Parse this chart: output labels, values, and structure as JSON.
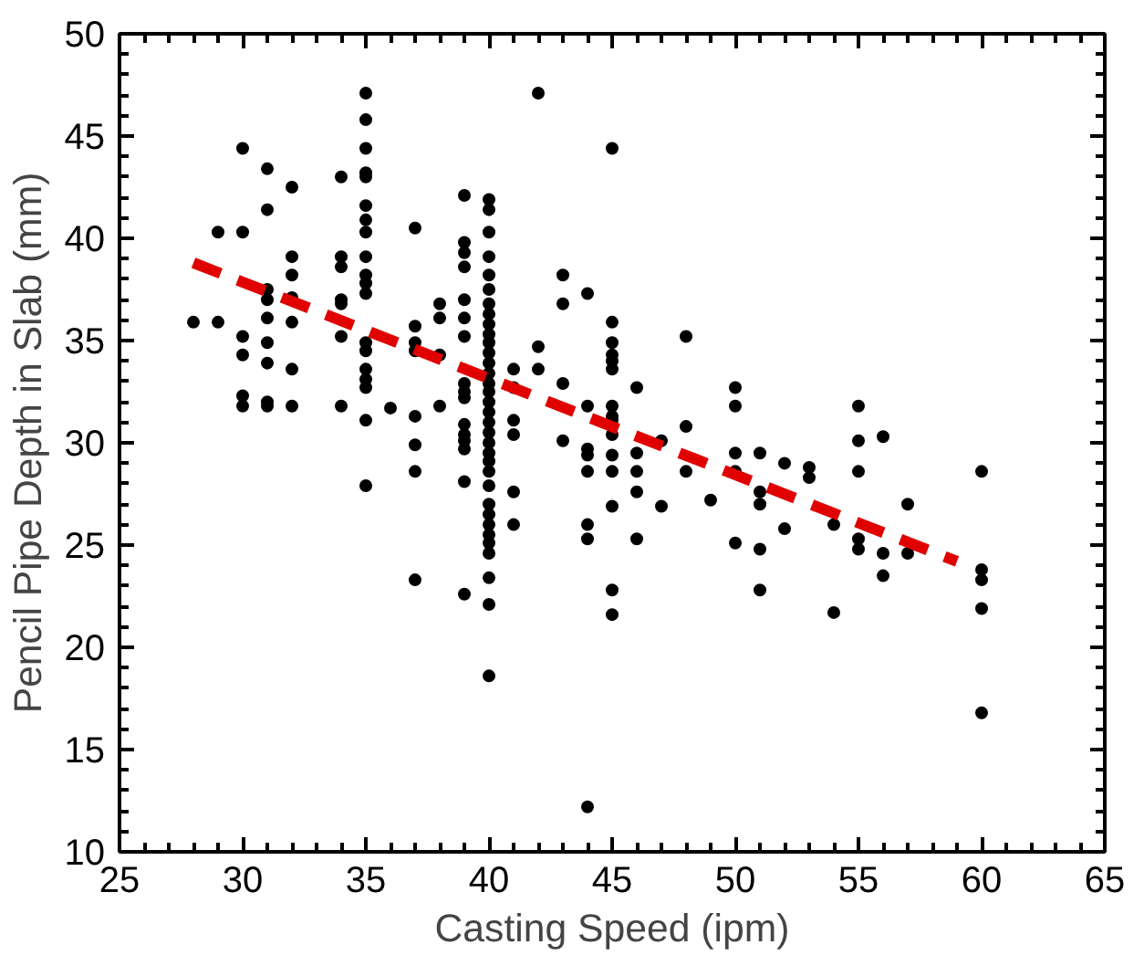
{
  "chart_data": {
    "type": "scatter",
    "xlabel": "Casting Speed (ipm)",
    "ylabel": "Pencil Pipe Depth in Slab (mm)",
    "xlim": [
      25,
      65
    ],
    "ylim": [
      10,
      50
    ],
    "xticks": [
      25,
      30,
      35,
      40,
      45,
      50,
      55,
      60,
      65
    ],
    "yticks": [
      10,
      15,
      20,
      25,
      30,
      35,
      40,
      45,
      50
    ],
    "grid": false,
    "series": [
      {
        "marker": "circle",
        "color": "#000000",
        "x": [
          28,
          29,
          29,
          30,
          30,
          30,
          30,
          30,
          30,
          31,
          31,
          31,
          31,
          31,
          31,
          31,
          31,
          31,
          32,
          32,
          32,
          32,
          32,
          32,
          32,
          34,
          34,
          34,
          34,
          34,
          34,
          34,
          35,
          35,
          35,
          35,
          35,
          35,
          35,
          35,
          35,
          35,
          35,
          35,
          35,
          35,
          35,
          35,
          35,
          35,
          35,
          36,
          37,
          37,
          37,
          37,
          37,
          37,
          37,
          37,
          38,
          38,
          38,
          38,
          39,
          39,
          39,
          39,
          39,
          39,
          39,
          39,
          39,
          39,
          39,
          39,
          39,
          39,
          39,
          39,
          40,
          40,
          40,
          40,
          40,
          40,
          40,
          40,
          40,
          40,
          40,
          40,
          40,
          40,
          40,
          40,
          40,
          40,
          40,
          40,
          40,
          40,
          40,
          40,
          40,
          40,
          40,
          40,
          40,
          40,
          40,
          40,
          40,
          40,
          41,
          41,
          41,
          41,
          41,
          41,
          42,
          42,
          42,
          43,
          43,
          43,
          43,
          44,
          44,
          44,
          44,
          44,
          44,
          44,
          44,
          45,
          45,
          45,
          45,
          45,
          45,
          45,
          45,
          45,
          45,
          45,
          45,
          45,
          45,
          45,
          46,
          46,
          46,
          46,
          46,
          47,
          47,
          48,
          48,
          48,
          49,
          50,
          50,
          50,
          50,
          50,
          51,
          51,
          51,
          51,
          51,
          52,
          52,
          53,
          53,
          54,
          54,
          55,
          55,
          55,
          55,
          55,
          56,
          56,
          56,
          57,
          57,
          60,
          60,
          60,
          60,
          60
        ],
        "values": [
          35.9,
          40.3,
          35.9,
          44.4,
          40.3,
          35.2,
          34.3,
          32.3,
          31.8,
          43.4,
          41.4,
          37.5,
          37.0,
          36.1,
          34.9,
          33.9,
          32.0,
          31.8,
          42.5,
          39.1,
          38.2,
          37.1,
          35.9,
          33.6,
          31.8,
          43.0,
          39.1,
          38.6,
          37.0,
          36.8,
          35.2,
          31.8,
          47.1,
          45.8,
          44.4,
          43.2,
          43.0,
          41.6,
          40.9,
          40.3,
          39.1,
          38.2,
          37.8,
          37.3,
          34.9,
          34.5,
          33.6,
          33.1,
          32.7,
          31.1,
          27.9,
          31.7,
          40.5,
          35.7,
          34.9,
          34.5,
          31.3,
          29.9,
          28.6,
          23.3,
          36.8,
          36.1,
          34.3,
          31.8,
          42.1,
          39.8,
          39.3,
          38.6,
          37.0,
          36.1,
          35.2,
          32.9,
          32.5,
          32.2,
          30.9,
          30.4,
          30.1,
          29.7,
          28.1,
          22.6,
          41.9,
          41.4,
          40.3,
          39.1,
          38.2,
          37.5,
          36.8,
          36.3,
          35.8,
          35.3,
          34.9,
          34.4,
          33.9,
          33.4,
          32.9,
          32.5,
          32.0,
          31.5,
          31.0,
          30.5,
          30.0,
          29.5,
          29.1,
          28.6,
          27.9,
          27.0,
          26.5,
          26.0,
          25.5,
          25.1,
          24.6,
          23.4,
          22.1,
          18.6,
          33.6,
          32.7,
          31.1,
          30.4,
          27.6,
          26.0,
          47.1,
          34.7,
          33.6,
          38.2,
          36.8,
          32.9,
          30.1,
          37.3,
          31.8,
          29.7,
          29.4,
          28.6,
          26.0,
          25.3,
          12.2,
          44.4,
          35.9,
          34.9,
          34.3,
          34.0,
          33.6,
          31.8,
          31.3,
          31.1,
          30.4,
          29.4,
          28.6,
          26.9,
          22.8,
          21.6,
          32.7,
          29.5,
          28.6,
          27.6,
          25.3,
          30.1,
          26.9,
          35.2,
          30.8,
          28.6,
          27.2,
          32.7,
          31.8,
          29.5,
          28.6,
          25.1,
          29.5,
          27.6,
          27.0,
          24.8,
          22.8,
          29.0,
          25.8,
          28.8,
          28.3,
          26.0,
          21.7,
          31.8,
          30.1,
          28.6,
          25.3,
          24.8,
          30.3,
          24.6,
          23.5,
          27.0,
          24.6,
          28.6,
          23.8,
          23.3,
          21.9,
          16.8
        ]
      },
      {
        "type": "line",
        "color": "#e00000",
        "line_style": "dashed",
        "x": [
          28,
          59
        ],
        "values": [
          38.8,
          24.2
        ]
      }
    ]
  }
}
